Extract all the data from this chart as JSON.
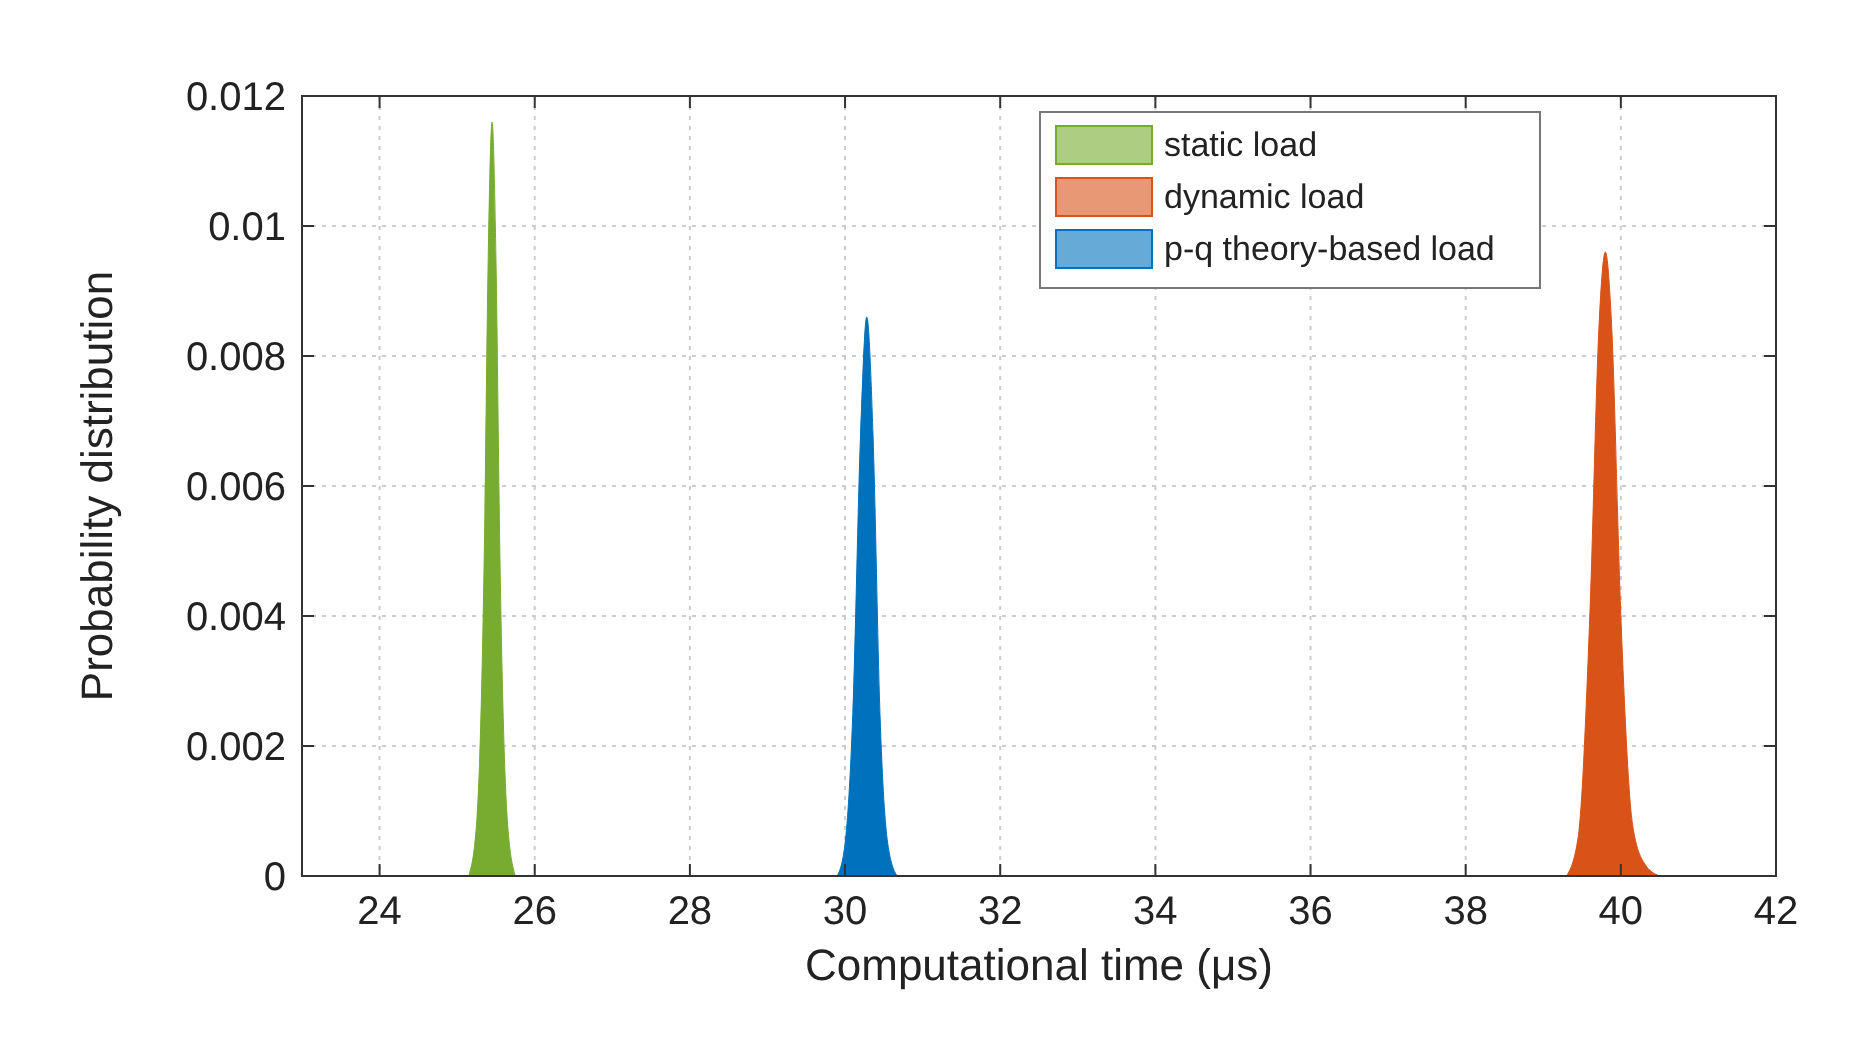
{
  "chart_data": {
    "type": "area",
    "xlabel": "Computational time (μs)",
    "ylabel": "Probability distribution",
    "xlim": [
      23,
      42
    ],
    "xticks": [
      24,
      26,
      28,
      30,
      32,
      34,
      36,
      38,
      40,
      42
    ],
    "ylim": [
      0,
      0.012
    ],
    "yticks": [
      0,
      0.002,
      0.004,
      0.006,
      0.008,
      0.01,
      0.012
    ],
    "grid": true,
    "legend": "top right",
    "series": [
      {
        "name": "static load",
        "color": "#77ac30",
        "x": [
          25.15,
          25.25,
          25.35,
          25.4,
          25.45,
          25.5,
          25.55,
          25.65,
          25.75
        ],
        "values": [
          0,
          0.0008,
          0.005,
          0.0095,
          0.0116,
          0.0095,
          0.005,
          0.0008,
          0
        ]
      },
      {
        "name": "dynamic load",
        "color": "#d95319",
        "x": [
          39.3,
          39.45,
          39.6,
          39.72,
          39.8,
          39.88,
          40.0,
          40.15,
          40.3,
          40.5
        ],
        "values": [
          0,
          0.0006,
          0.004,
          0.0085,
          0.0096,
          0.0085,
          0.004,
          0.0008,
          0.0002,
          0
        ]
      },
      {
        "name": "p-q theory-based load",
        "color": "#0072bd",
        "x": [
          29.9,
          30.0,
          30.1,
          30.2,
          30.28,
          30.36,
          30.45,
          30.55,
          30.67
        ],
        "values": [
          0,
          0.0005,
          0.0025,
          0.0068,
          0.0086,
          0.0068,
          0.0025,
          0.0005,
          0
        ]
      }
    ]
  }
}
